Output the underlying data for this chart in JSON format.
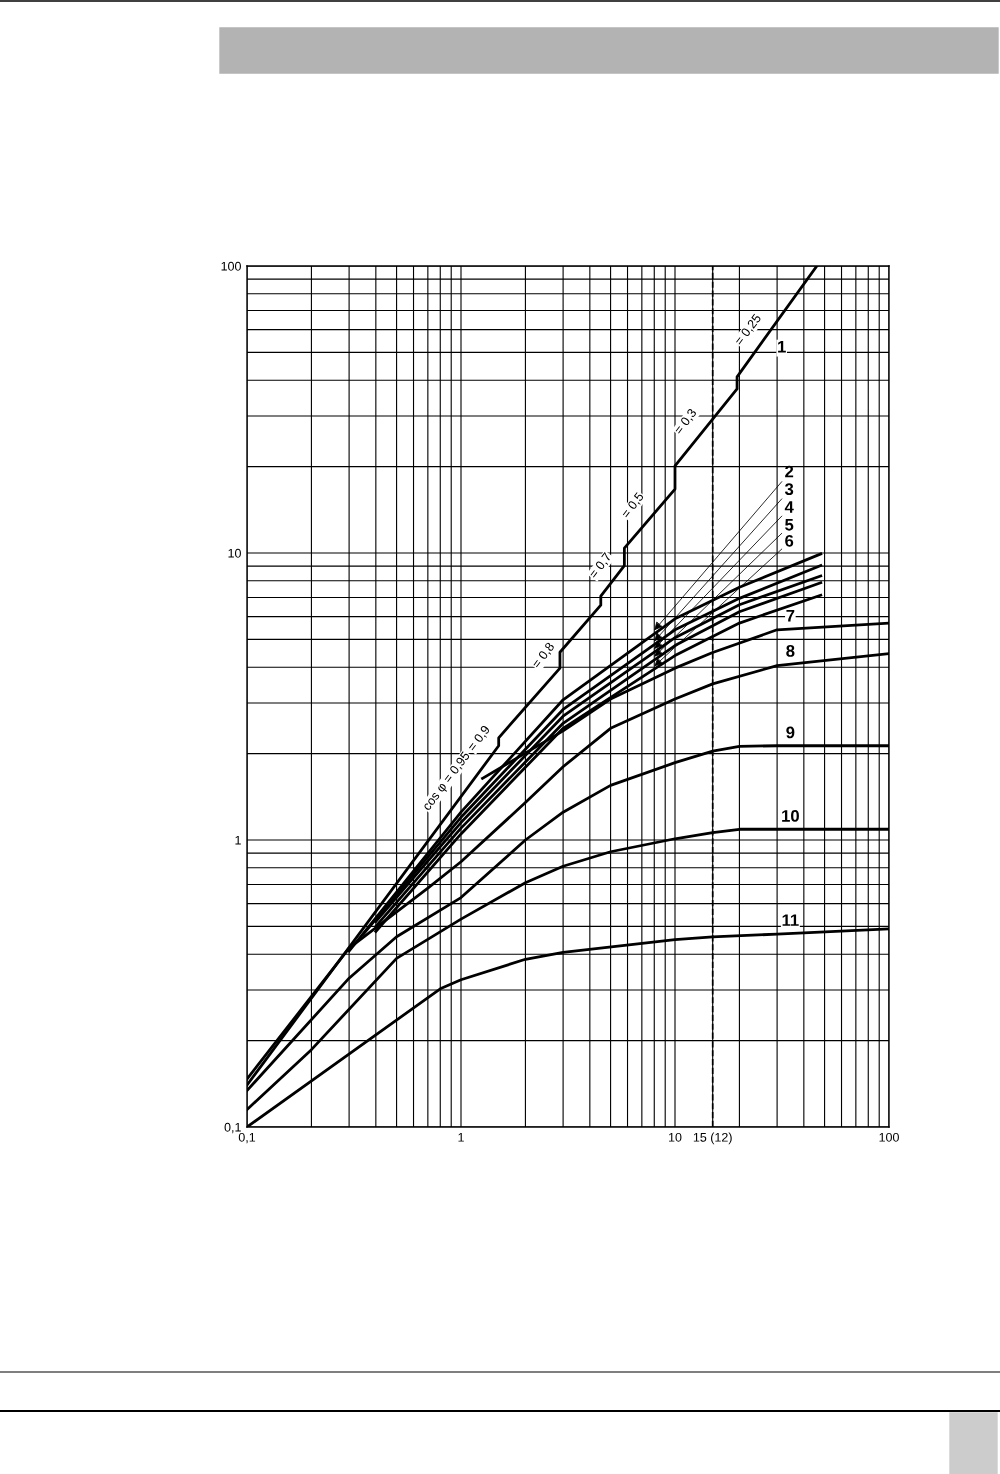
{
  "chart_data": {
    "type": "line",
    "log": "xy",
    "grid": true,
    "line_style": "solid",
    "marker": "none",
    "xlim": [
      0.1,
      100
    ],
    "ylim": [
      0.1,
      100
    ],
    "xticks": [
      {
        "value": 0.1,
        "label": "0,1"
      },
      {
        "value": 0.2,
        "label": null
      },
      {
        "value": 0.3,
        "label": null
      },
      {
        "value": 0.4,
        "label": null
      },
      {
        "value": 0.5,
        "label": null
      },
      {
        "value": 0.6,
        "label": null
      },
      {
        "value": 0.7,
        "label": null
      },
      {
        "value": 0.8,
        "label": null
      },
      {
        "value": 0.9,
        "label": null
      },
      1,
      {
        "value": 2,
        "label": null
      },
      {
        "value": 3,
        "label": null
      },
      {
        "value": 4,
        "label": null
      },
      {
        "value": 5,
        "label": null
      },
      {
        "value": 6,
        "label": null
      },
      {
        "value": 7,
        "label": null
      },
      {
        "value": 8,
        "label": null
      },
      {
        "value": 9,
        "label": null
      },
      10,
      {
        "value": 15,
        "label": "15 (12)"
      },
      {
        "value": 20,
        "label": null
      },
      {
        "value": 30,
        "label": null
      },
      {
        "value": 40,
        "label": null
      },
      {
        "value": 50,
        "label": null
      },
      {
        "value": 60,
        "label": null
      },
      {
        "value": 70,
        "label": null
      },
      {
        "value": 80,
        "label": null
      },
      {
        "value": 90,
        "label": null
      },
      100
    ],
    "yticks": [
      {
        "value": 0.1,
        "label": "0,1"
      },
      {
        "value": 0.2,
        "label": null
      },
      {
        "value": 0.3,
        "label": null
      },
      {
        "value": 0.4,
        "label": null
      },
      {
        "value": 0.5,
        "label": null
      },
      {
        "value": 0.6,
        "label": null
      },
      {
        "value": 0.7,
        "label": null
      },
      {
        "value": 0.8,
        "label": null
      },
      {
        "value": 0.9,
        "label": null
      },
      1,
      {
        "value": 2,
        "label": null
      },
      {
        "value": 3,
        "label": null
      },
      {
        "value": 4,
        "label": null
      },
      {
        "value": 5,
        "label": null
      },
      {
        "value": 6,
        "label": null
      },
      {
        "value": 7,
        "label": null
      },
      {
        "value": 8,
        "label": null
      },
      {
        "value": 9,
        "label": null
      },
      10,
      {
        "value": 20,
        "label": null
      },
      {
        "value": 30,
        "label": null
      },
      {
        "value": 40,
        "label": null
      },
      {
        "value": 50,
        "label": null
      },
      {
        "value": 60,
        "label": null
      },
      {
        "value": 70,
        "label": null
      },
      {
        "value": 80,
        "label": null
      },
      {
        "value": 90,
        "label": null
      },
      100
    ],
    "ref_lines": [
      {
        "axis": "x",
        "value": 15,
        "color": "#000000",
        "line_style": "dashed"
      }
    ],
    "series": [
      {
        "name": "1",
        "color": "#000000",
        "x": [
          0.1,
          1.5,
          1.5,
          2.9,
          2.9,
          4.5,
          4.5,
          5.8,
          5.8,
          10,
          10,
          19.5,
          19.5,
          46
        ],
        "values": [
          0.14,
          2.13,
          2.27,
          3.97,
          4.51,
          6.58,
          7.08,
          9.04,
          10.4,
          16.7,
          20.1,
          37.3,
          41.1,
          100
        ]
      },
      {
        "name": "2",
        "color": "#000000",
        "x": [
          0.3,
          1,
          3,
          10,
          20,
          48
        ],
        "values": [
          0.41,
          1.25,
          3.08,
          5.9,
          7.6,
          9.93
        ]
      },
      {
        "name": "3",
        "color": "#000000",
        "x": [
          0.35,
          1,
          3,
          10,
          20,
          48
        ],
        "values": [
          0.47,
          1.2,
          2.85,
          5.4,
          6.95,
          9.04
        ]
      },
      {
        "name": "4",
        "color": "#000000",
        "x": [
          0.4,
          1,
          3,
          10,
          20,
          48
        ],
        "values": [
          0.52,
          1.15,
          2.7,
          5.07,
          6.6,
          8.32
        ]
      },
      {
        "name": "5",
        "color": "#000000",
        "x": [
          0.4,
          1,
          3,
          10,
          20,
          48
        ],
        "values": [
          0.5,
          1.1,
          2.55,
          4.76,
          6.24,
          7.88
        ]
      },
      {
        "name": "6",
        "color": "#000000",
        "x": [
          0.4,
          1,
          3,
          10,
          20,
          48
        ],
        "values": [
          0.48,
          1.05,
          2.45,
          4.39,
          5.7,
          7.13
        ]
      },
      {
        "name": "7",
        "color": "#000000",
        "x": [
          1.26,
          3,
          5,
          10,
          15,
          30,
          100
        ],
        "values": [
          1.64,
          2.4,
          3.1,
          3.97,
          4.5,
          5.4,
          5.7
        ]
      },
      {
        "name": "8",
        "color": "#000000",
        "x": [
          0.1,
          0.3,
          0.7,
          1,
          2,
          3,
          5,
          10,
          15,
          30,
          100
        ],
        "values": [
          0.147,
          0.42,
          0.68,
          0.84,
          1.35,
          1.8,
          2.45,
          3.1,
          3.5,
          4.05,
          4.46
        ]
      },
      {
        "name": "9",
        "color": "#000000",
        "x": [
          0.1,
          0.3,
          0.5,
          1,
          2,
          3,
          5,
          10,
          15,
          20,
          30,
          100
        ],
        "values": [
          0.134,
          0.33,
          0.46,
          0.63,
          1.0,
          1.25,
          1.55,
          1.86,
          2.04,
          2.12,
          2.13,
          2.13
        ]
      },
      {
        "name": "10",
        "color": "#000000",
        "x": [
          0.1,
          0.2,
          0.5,
          1,
          2,
          3,
          5,
          10,
          15,
          20,
          100
        ],
        "values": [
          0.115,
          0.186,
          0.387,
          0.53,
          0.71,
          0.81,
          0.91,
          1.01,
          1.06,
          1.09,
          1.09
        ]
      },
      {
        "name": "11",
        "color": "#000000",
        "x": [
          0.1,
          0.8,
          1,
          2,
          3,
          10,
          15,
          30,
          100
        ],
        "values": [
          0.1,
          0.303,
          0.326,
          0.384,
          0.406,
          0.45,
          0.46,
          0.47,
          0.49
        ]
      }
    ],
    "annotations": [
      {
        "text": "cos φ = 0,95",
        "x": 0.8,
        "y": 1.15
      },
      {
        "text": "= 0,9",
        "x": 1.3,
        "y": 1.85
      },
      {
        "text": "= 0,8",
        "x": 2.6,
        "y": 3.6
      },
      {
        "text": "= 0,7",
        "x": 4.8,
        "y": 7.4
      },
      {
        "text": "= 0,5",
        "x": 6.8,
        "y": 12.0
      },
      {
        "text": "= 0,3",
        "x": 12,
        "y": 23.5
      },
      {
        "text": "= 0,25",
        "x": 23,
        "y": 48
      }
    ]
  }
}
